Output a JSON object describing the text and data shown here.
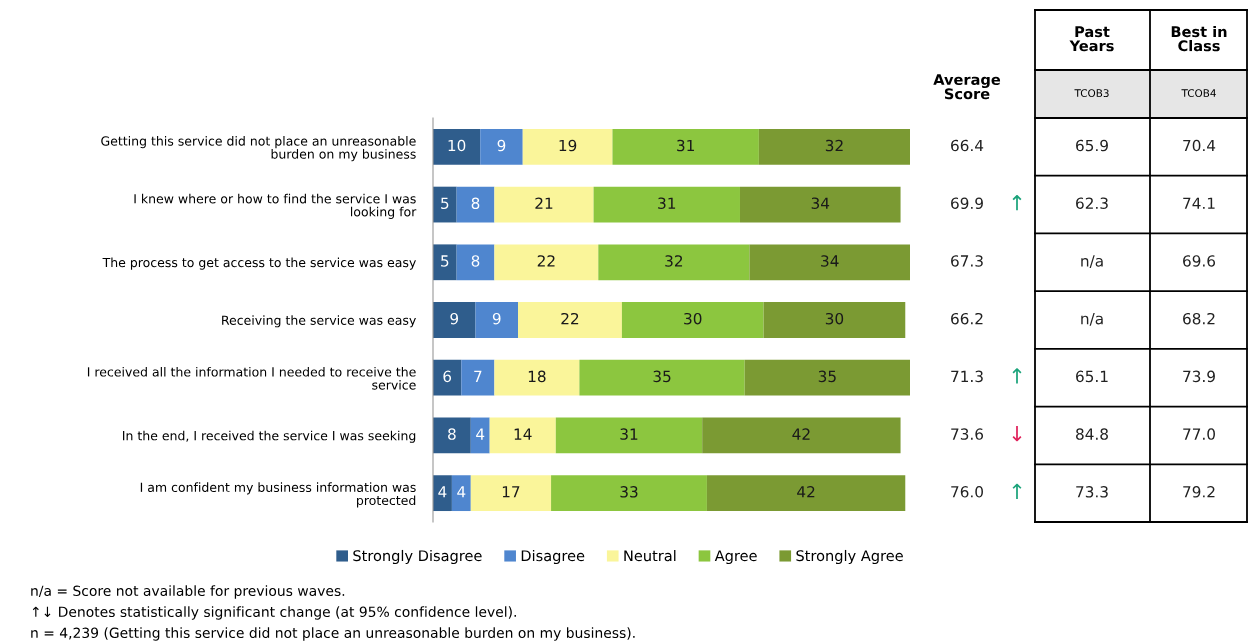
{
  "chart_data": [
    {
      "type": "bar",
      "orientation": "horizontal",
      "stacked": true,
      "data_labels": true,
      "legend": "bottom",
      "categories": [
        "Getting this service did not place an unreasonable\nburden on my business",
        "I knew where or how to find the service I was\nlooking for",
        "The process to get access to the service was easy",
        "Receiving the service was easy",
        "I received all the information I needed to receive the\nservice",
        "In the end, I received the service I was seeking",
        "I am confident my business information was\nprotected"
      ],
      "series": [
        {
          "name": "Strongly Disagree",
          "color": "#2f5d8c",
          "values": [
            10,
            5,
            5,
            9,
            6,
            8,
            4
          ]
        },
        {
          "name": "Disagree",
          "color": "#4f86cf",
          "values": [
            9,
            8,
            8,
            9,
            7,
            4,
            4
          ]
        },
        {
          "name": "Neutral",
          "color": "#faf59a",
          "values": [
            19,
            21,
            22,
            22,
            18,
            14,
            17
          ]
        },
        {
          "name": "Agree",
          "color": "#8cc63f",
          "values": [
            31,
            31,
            32,
            30,
            35,
            31,
            33
          ]
        },
        {
          "name": "Strongly Agree",
          "color": "#7b9a33",
          "values": [
            32,
            34,
            34,
            30,
            35,
            42,
            42
          ]
        }
      ],
      "annotations": [
        "n/a = Score not available for previous waves.",
        "↑↓ Denotes statistically significant change (at 95% confidence level).",
        "n = 4,239 (Getting this service did not place an unreasonable burden on my business)."
      ]
    },
    {
      "type": "other",
      "categories": [
        "Average Score",
        null,
        "Past Years",
        "Best in Class"
      ],
      "annotations": [
        "TCOB3",
        "TCOB4",
        "66.4",
        "65.9",
        "70.4",
        "69.9",
        "↑",
        "62.3",
        "74.1",
        "67.3",
        "n/a",
        "69.6",
        "66.2",
        "n/a",
        "68.2",
        "71.3",
        "↑",
        "65.1",
        "73.9",
        "73.6",
        "↓",
        "84.8",
        "77.0",
        "76.0",
        "↑",
        "73.3",
        "79.2"
      ],
      "colors": [
        null,
        null,
        null,
        null,
        null,
        null,
        "#1aa37a",
        null,
        null,
        null,
        null,
        null,
        null,
        null,
        null,
        null,
        "#1aa37a",
        null,
        null,
        null,
        "#e0205a",
        null,
        null,
        null,
        "#1aa37a",
        null,
        null
      ]
    }
  ]
}
